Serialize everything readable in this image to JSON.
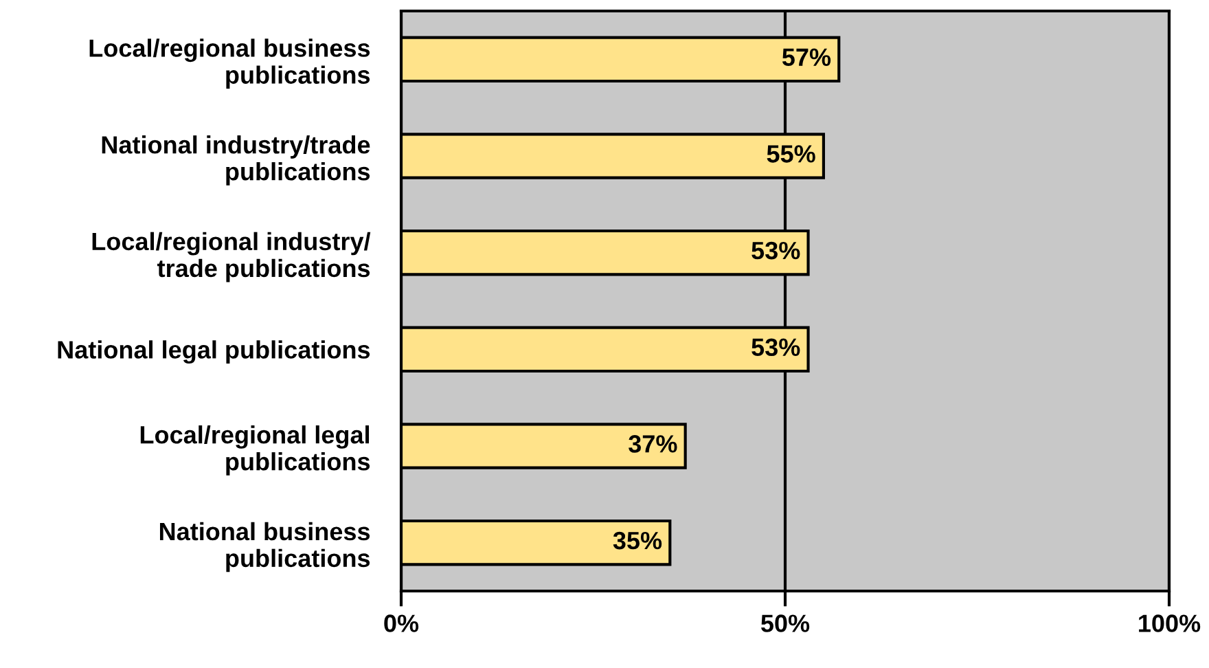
{
  "chart_data": {
    "type": "bar",
    "orientation": "horizontal",
    "categories": [
      "Local/regional business\npublications",
      "National industry/trade\npublications",
      "Local/regional industry/\ntrade publications",
      "National legal publications",
      "Local/regional legal\npublications",
      "National business\npublications"
    ],
    "values": [
      57,
      55,
      53,
      53,
      37,
      35
    ],
    "value_labels": [
      "57%",
      "55%",
      "53%",
      "53%",
      "37%",
      "35%"
    ],
    "color": "#ffe38a",
    "xlim": [
      0,
      100
    ],
    "xticks": [
      {
        "value": 0,
        "label": "0%"
      },
      {
        "value": 50,
        "label": "50%"
      },
      {
        "value": 100,
        "label": "100%"
      }
    ],
    "grid": "x",
    "legend": false
  }
}
